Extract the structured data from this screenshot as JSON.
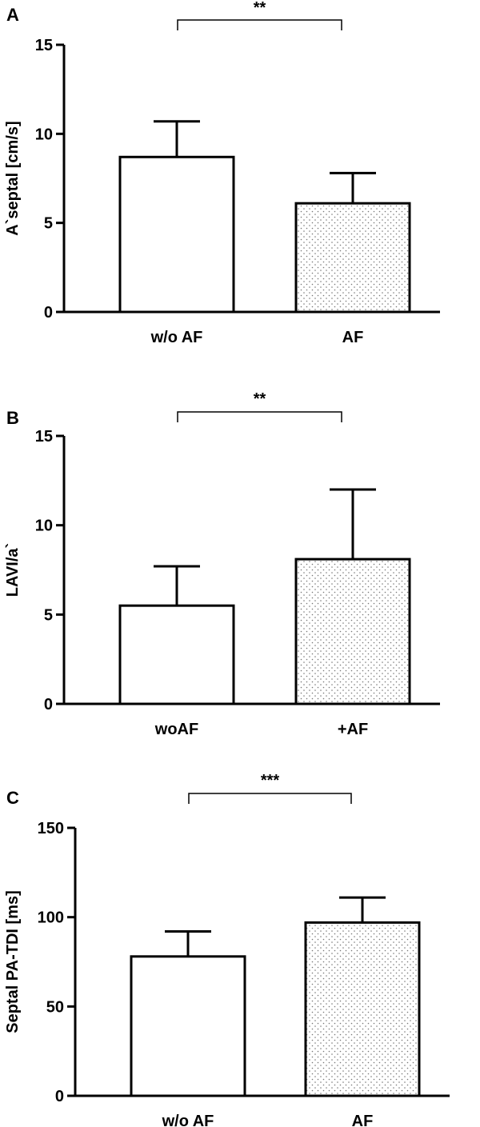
{
  "chart_data": [
    {
      "type": "bar",
      "panel": "A",
      "categories": [
        "w/o AF",
        "AF"
      ],
      "values": [
        8.7,
        6.1
      ],
      "errors": [
        2.0,
        1.7
      ],
      "ylabel": "A`septal [cm/s]",
      "ylim": [
        0,
        15
      ],
      "yticks": [
        0,
        5,
        10,
        15
      ],
      "significance": "**",
      "fills": [
        "white",
        "dotted"
      ]
    },
    {
      "type": "bar",
      "panel": "B",
      "categories": [
        "woAF",
        "+AF"
      ],
      "values": [
        5.5,
        8.1
      ],
      "errors": [
        2.2,
        3.9
      ],
      "ylabel": "LAVI/a`",
      "ylim": [
        0,
        15
      ],
      "yticks": [
        0,
        5,
        10,
        15
      ],
      "significance": "**",
      "fills": [
        "white",
        "dotted"
      ]
    },
    {
      "type": "bar",
      "panel": "C",
      "categories": [
        "w/o AF",
        "AF"
      ],
      "values": [
        78,
        97
      ],
      "errors": [
        14,
        14
      ],
      "ylabel": "Septal PA-TDI [ms]",
      "ylim": [
        0,
        150
      ],
      "yticks": [
        0,
        50,
        100,
        150
      ],
      "significance": "***",
      "fills": [
        "white",
        "dotted"
      ]
    }
  ]
}
